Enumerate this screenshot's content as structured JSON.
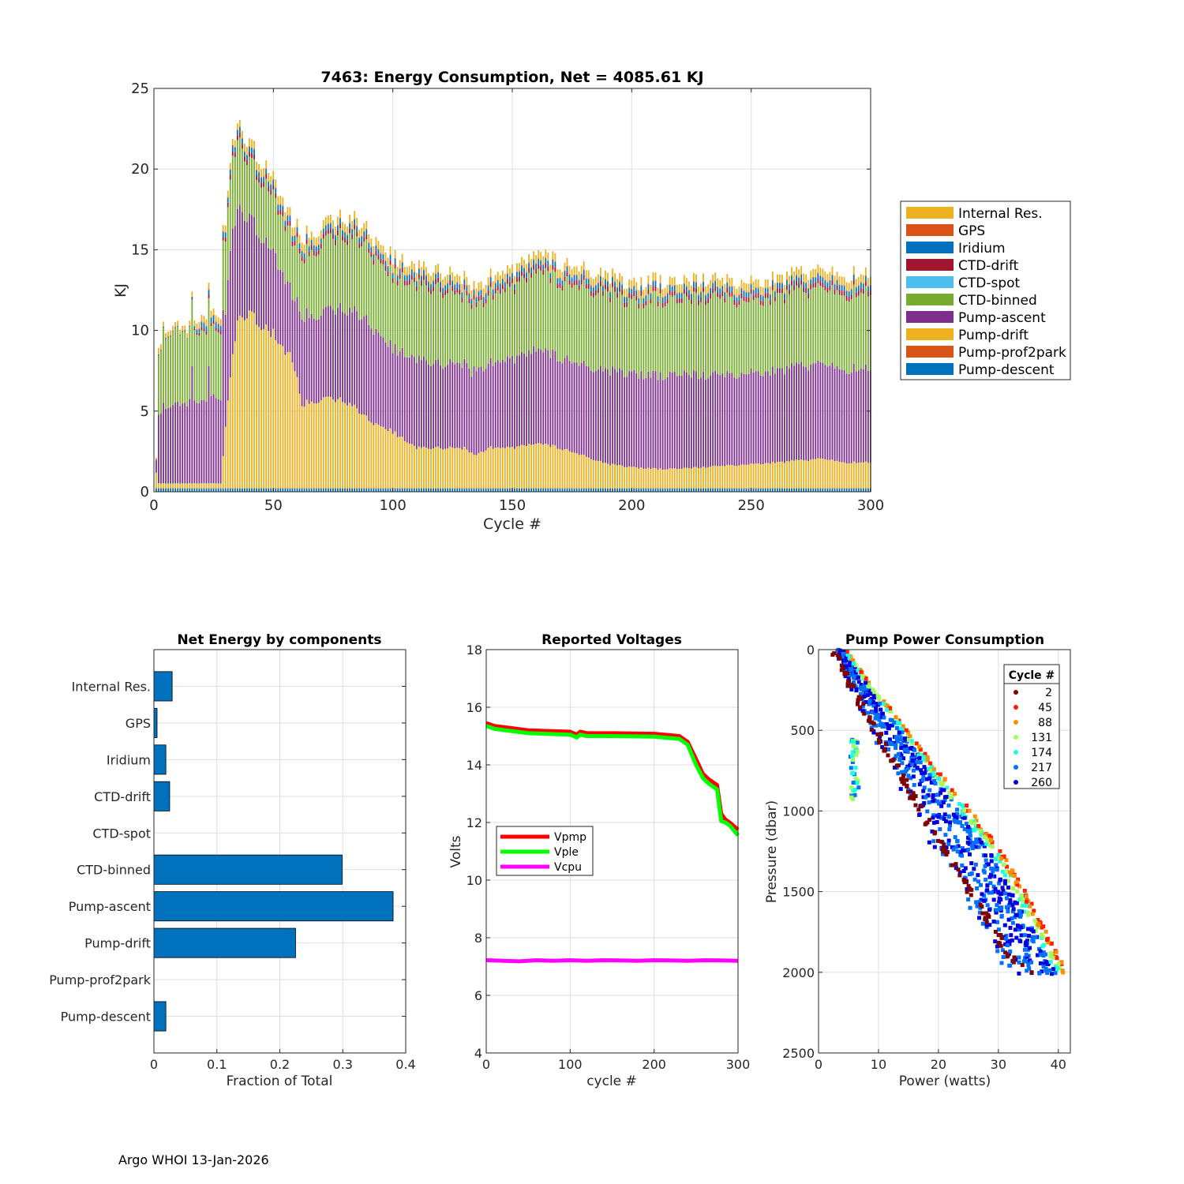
{
  "colors": {
    "pump_descent": "#0072bd",
    "pump_prof2park": "#d95319",
    "pump_drift": "#edb120",
    "pump_ascent": "#7e2f8e",
    "ctd_binned": "#77ac30",
    "ctd_spot": "#4dbeee",
    "ctd_drift": "#a2142f",
    "iridium": "#0072bd",
    "gps": "#d95319",
    "internal_res": "#edb120",
    "bar": "#0072bd",
    "vpmp": "#ff0000",
    "vple": "#00ff00",
    "vcpu": "#ff00ff"
  },
  "footer": "Argo WHOI 13-Jan-2026",
  "chart_data": [
    {
      "id": "energy",
      "type": "bar",
      "stacked": true,
      "title": "7463: Energy Consumption,  Net = 4085.61 KJ",
      "xlabel": "Cycle #",
      "ylabel": "KJ",
      "xlim": [
        0,
        300
      ],
      "ylim": [
        0,
        25
      ],
      "xticks": [
        0,
        50,
        100,
        150,
        200,
        250,
        300
      ],
      "yticks": [
        0,
        5,
        10,
        15,
        20,
        25
      ],
      "grid": true,
      "legend_position": "outside-right",
      "legend": [
        "Internal Res.",
        "GPS",
        "Iridium",
        "CTD-drift",
        "CTD-spot",
        "CTD-binned",
        "Pump-ascent",
        "Pump-drift",
        "Pump-prof2park",
        "Pump-descent"
      ],
      "legend_colors": [
        "internal_res",
        "gps",
        "iridium",
        "ctd_drift",
        "ctd_spot",
        "ctd_binned",
        "pump_ascent",
        "pump_drift",
        "pump_prof2park",
        "pump_descent"
      ],
      "stack_order": [
        "pump_descent",
        "pump_prof2park",
        "pump_drift",
        "pump_ascent",
        "ctd_binned",
        "ctd_spot",
        "ctd_drift",
        "iridium",
        "gps",
        "internal_res"
      ],
      "cycle_count": 300,
      "stack_profile": {
        "cycles": [
          1,
          2,
          4,
          10,
          15,
          20,
          25,
          28,
          32,
          35,
          40,
          45,
          50,
          55,
          58,
          62,
          70,
          80,
          90,
          100,
          110,
          120,
          130,
          134,
          140,
          150,
          160,
          170,
          180,
          190,
          200,
          210,
          220,
          230,
          240,
          250,
          260,
          270,
          280,
          290,
          300
        ],
        "pump_descent": [
          0.2,
          0.2,
          0.2,
          0.2,
          0.2,
          0.2,
          0.2,
          0.2,
          0.2,
          0.2,
          0.2,
          0.2,
          0.2,
          0.2,
          0.2,
          0.2,
          0.2,
          0.2,
          0.2,
          0.2,
          0.2,
          0.2,
          0.2,
          0.2,
          0.2,
          0.2,
          0.2,
          0.2,
          0.2,
          0.2,
          0.2,
          0.2,
          0.2,
          0.2,
          0.2,
          0.2,
          0.2,
          0.2,
          0.2,
          0.2,
          0.2
        ],
        "pump_prof2park": [
          0.02,
          0.02,
          0.02,
          0.02,
          0.02,
          0.02,
          0.02,
          0.02,
          0.02,
          0.02,
          0.02,
          0.02,
          0.02,
          0.02,
          0.02,
          0.02,
          0.02,
          0.02,
          0.02,
          0.02,
          0.02,
          0.02,
          0.02,
          0.02,
          0.02,
          0.02,
          0.02,
          0.02,
          0.02,
          0.02,
          0.02,
          0.02,
          0.02,
          0.02,
          0.02,
          0.02,
          0.02,
          0.02,
          0.02,
          0.02,
          0.02
        ],
        "pump_drift": [
          1.0,
          0.3,
          0.3,
          0.3,
          0.3,
          0.3,
          0.3,
          0.3,
          7.0,
          10.5,
          11.0,
          10.0,
          9.5,
          8.5,
          8.0,
          5.2,
          5.5,
          5.5,
          4.2,
          3.5,
          2.5,
          2.5,
          2.5,
          2.0,
          2.5,
          2.5,
          2.8,
          2.5,
          2.0,
          1.5,
          1.3,
          1.2,
          1.2,
          1.3,
          1.4,
          1.5,
          1.6,
          1.7,
          1.8,
          1.6,
          1.6
        ],
        "pump_ascent": [
          0.8,
          4.2,
          4.8,
          5.0,
          5.0,
          5.0,
          5.3,
          5.3,
          8.0,
          7.0,
          6.0,
          5.5,
          4.8,
          4.5,
          4.0,
          5.5,
          5.3,
          5.8,
          6.0,
          5.2,
          5.5,
          5.2,
          5.3,
          5.3,
          5.2,
          5.5,
          5.8,
          5.6,
          5.6,
          5.8,
          5.8,
          5.8,
          5.8,
          5.7,
          5.6,
          5.7,
          5.7,
          5.8,
          5.8,
          5.8,
          5.8
        ],
        "ctd_binned": [
          0.0,
          3.6,
          4.5,
          4.6,
          4.3,
          4.2,
          4.2,
          4.2,
          4.5,
          4.3,
          3.5,
          3.5,
          3.5,
          3.4,
          3.4,
          3.7,
          4.2,
          4.6,
          4.5,
          4.5,
          4.6,
          4.6,
          4.2,
          4.0,
          4.2,
          4.4,
          4.9,
          4.7,
          4.8,
          4.8,
          4.4,
          4.8,
          4.5,
          4.8,
          4.7,
          4.5,
          4.6,
          4.6,
          4.6,
          4.7,
          4.7
        ],
        "ctd_spot": [
          0.0,
          0.0,
          0.0,
          0.0,
          0.0,
          0.0,
          0.0,
          0.0,
          0.0,
          0.0,
          0.0,
          0.0,
          0.0,
          0.0,
          0.0,
          0.0,
          0.0,
          0.0,
          0.0,
          0.0,
          0.0,
          0.0,
          0.0,
          0.0,
          0.0,
          0.0,
          0.0,
          0.0,
          0.0,
          0.0,
          0.0,
          0.0,
          0.0,
          0.0,
          0.0,
          0.0,
          0.0,
          0.0,
          0.0,
          0.0,
          0.0
        ],
        "ctd_drift": [
          0.0,
          0.0,
          0.0,
          0.0,
          0.0,
          0.2,
          0.2,
          0.2,
          0.3,
          0.3,
          0.3,
          0.3,
          0.3,
          0.3,
          0.3,
          0.3,
          0.3,
          0.3,
          0.3,
          0.3,
          0.3,
          0.3,
          0.3,
          0.3,
          0.3,
          0.3,
          0.3,
          0.3,
          0.3,
          0.3,
          0.3,
          0.3,
          0.3,
          0.3,
          0.3,
          0.3,
          0.3,
          0.3,
          0.3,
          0.3,
          0.3
        ],
        "iridium": [
          0.05,
          0.05,
          0.05,
          0.05,
          0.05,
          0.3,
          0.3,
          0.3,
          0.3,
          0.3,
          0.3,
          0.3,
          0.3,
          0.3,
          0.3,
          0.3,
          0.3,
          0.3,
          0.3,
          0.3,
          0.3,
          0.3,
          0.3,
          0.3,
          0.3,
          0.3,
          0.3,
          0.3,
          0.3,
          0.3,
          0.3,
          0.3,
          0.3,
          0.3,
          0.3,
          0.3,
          0.3,
          0.3,
          0.3,
          0.3,
          0.3
        ],
        "gps": [
          0.02,
          0.02,
          0.02,
          0.02,
          0.02,
          0.05,
          0.05,
          0.05,
          0.05,
          0.05,
          0.05,
          0.05,
          0.05,
          0.05,
          0.05,
          0.05,
          0.05,
          0.05,
          0.05,
          0.05,
          0.05,
          0.05,
          0.05,
          0.05,
          0.05,
          0.05,
          0.05,
          0.05,
          0.05,
          0.05,
          0.05,
          0.05,
          0.05,
          0.05,
          0.05,
          0.05,
          0.05,
          0.05,
          0.05,
          0.05,
          0.05
        ],
        "internal_res": [
          0.1,
          0.4,
          0.3,
          0.3,
          0.3,
          0.4,
          0.4,
          0.4,
          0.4,
          0.4,
          0.5,
          0.5,
          0.5,
          0.5,
          0.5,
          0.5,
          0.5,
          0.5,
          0.5,
          0.5,
          0.5,
          0.5,
          0.5,
          0.5,
          0.5,
          0.5,
          0.5,
          0.5,
          0.5,
          0.5,
          0.5,
          0.5,
          0.5,
          0.5,
          0.5,
          0.5,
          0.5,
          0.5,
          0.5,
          0.5,
          0.5
        ]
      }
    },
    {
      "id": "net",
      "type": "bar",
      "orientation": "horizontal",
      "title": "Net Energy by components",
      "xlabel": "Fraction of Total",
      "xlim": [
        0,
        0.4
      ],
      "xticks": [
        0,
        0.1,
        0.2,
        0.3,
        0.4
      ],
      "grid": true,
      "categories": [
        "Internal Res.",
        "GPS",
        "Iridium",
        "CTD-drift",
        "CTD-spot",
        "CTD-binned",
        "Pump-ascent",
        "Pump-drift",
        "Pump-prof2park",
        "Pump-descent"
      ],
      "values": [
        0.029,
        0.005,
        0.019,
        0.025,
        0.0,
        0.299,
        0.38,
        0.225,
        0.0,
        0.019
      ]
    },
    {
      "id": "voltages",
      "type": "line",
      "title": "Reported Voltages",
      "xlabel": "cycle #",
      "ylabel": "Volts",
      "xlim": [
        0,
        300
      ],
      "ylim": [
        4,
        18
      ],
      "xticks": [
        0,
        100,
        200,
        300
      ],
      "yticks": [
        4,
        6,
        8,
        10,
        12,
        14,
        16,
        18
      ],
      "grid": true,
      "legend_position": "middle-left",
      "series": [
        {
          "name": "Vpmp",
          "color_key": "vpmp",
          "x": [
            0,
            10,
            50,
            100,
            108,
            112,
            120,
            150,
            200,
            230,
            240,
            250,
            258,
            265,
            275,
            280,
            285,
            290,
            300
          ],
          "y": [
            15.45,
            15.35,
            15.2,
            15.15,
            15.05,
            15.15,
            15.1,
            15.1,
            15.08,
            15.0,
            14.8,
            14.2,
            13.7,
            13.5,
            13.3,
            12.3,
            12.1,
            12.0,
            11.75
          ]
        },
        {
          "name": "Vple",
          "color_key": "vple",
          "x": [
            0,
            10,
            50,
            100,
            108,
            112,
            120,
            150,
            200,
            230,
            240,
            250,
            258,
            265,
            275,
            280,
            285,
            290,
            300
          ],
          "y": [
            15.35,
            15.25,
            15.1,
            15.05,
            14.95,
            15.05,
            15.0,
            15.0,
            14.98,
            14.9,
            14.7,
            14.0,
            13.55,
            13.35,
            13.15,
            12.05,
            12.0,
            11.9,
            11.55
          ]
        },
        {
          "name": "Vcpu",
          "color_key": "vcpu",
          "x": [
            0,
            20,
            40,
            60,
            80,
            100,
            120,
            140,
            160,
            180,
            200,
            220,
            240,
            260,
            280,
            300
          ],
          "y": [
            7.22,
            7.2,
            7.18,
            7.22,
            7.2,
            7.22,
            7.2,
            7.22,
            7.21,
            7.2,
            7.22,
            7.21,
            7.2,
            7.22,
            7.21,
            7.2
          ]
        }
      ]
    },
    {
      "id": "pump",
      "type": "scatter",
      "title": "Pump Power Consumption",
      "xlabel": "Power (watts)",
      "ylabel": "Pressure (dbar)",
      "xlim": [
        0,
        42
      ],
      "ylim": [
        2500,
        0
      ],
      "xticks": [
        0,
        10,
        20,
        30,
        40
      ],
      "yticks": [
        0,
        500,
        1000,
        1500,
        2000,
        2500
      ],
      "grid": true,
      "legend_title": "Cycle #",
      "legend_position": "top-right",
      "legend": [
        "2",
        "45",
        "88",
        "131",
        "174",
        "217",
        "260"
      ],
      "legend_colors": [
        "#7f0000",
        "#ff1f00",
        "#ff8f00",
        "#9fff5f",
        "#1fffdf",
        "#0070ff",
        "#0000df"
      ],
      "clusters": [
        {
          "name": "main-envelope",
          "p": [
            0,
            250,
            500,
            750,
            1000,
            1250,
            1500,
            1750,
            2000
          ],
          "w_min": [
            2.5,
            5.0,
            8.0,
            11.5,
            15.0,
            19.0,
            23.5,
            27.0,
            30.5
          ],
          "w_max": [
            4.5,
            9.5,
            15.0,
            20.0,
            25.5,
            30.5,
            34.5,
            38.0,
            41.5
          ]
        },
        {
          "name": "shallow-branch",
          "p": [
            550,
            700,
            850,
            950
          ],
          "w_min": [
            5.5,
            5.2,
            5.4,
            5.5
          ],
          "w_max": [
            6.5,
            6.5,
            6.8,
            7.0
          ]
        },
        {
          "name": "cycle-2-curve",
          "p": [
            0,
            200,
            400,
            600,
            800,
            1000,
            1300,
            1600,
            1900,
            2000
          ],
          "w": [
            2.5,
            5.0,
            8.0,
            11.0,
            14.0,
            17.0,
            22.0,
            27.0,
            32.0,
            35.0
          ]
        }
      ]
    }
  ]
}
